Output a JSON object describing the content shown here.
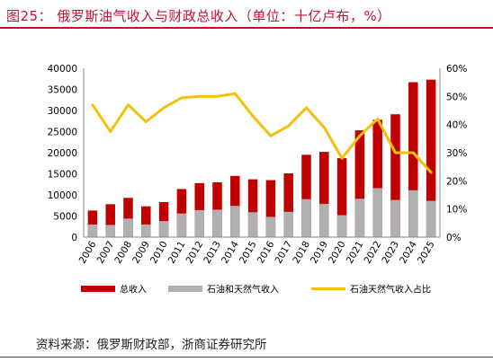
{
  "figure": {
    "title": "图25：  俄罗斯油气收入与财政总收入（单位：十亿卢布，%）",
    "source": "资料来源：俄罗斯财政部，浙商证券研究所"
  },
  "colors": {
    "total": "#c00000",
    "oilgas": "#b0b0b0",
    "share": "#f5bf0a",
    "accent": "#c8102e"
  },
  "chart_data": {
    "type": "bar",
    "categories": [
      "2006",
      "2007",
      "2008",
      "2009",
      "2010",
      "2011",
      "2012",
      "2013",
      "2014",
      "2015",
      "2016",
      "2017",
      "2018",
      "2019",
      "2020",
      "2021",
      "2022",
      "2023",
      "2024",
      "2025"
    ],
    "series": [
      {
        "name": "总收入",
        "type": "bar",
        "axis": "left",
        "values": [
          6300,
          7800,
          9300,
          7300,
          8300,
          11400,
          12800,
          13000,
          14500,
          13700,
          13500,
          15100,
          19500,
          20200,
          18700,
          25300,
          27800,
          29100,
          36700,
          37300
        ]
      },
      {
        "name": "石油和天然气收入",
        "type": "bar",
        "axis": "left",
        "values": [
          3000,
          2900,
          4400,
          3000,
          3800,
          5600,
          6400,
          6500,
          7400,
          5900,
          4800,
          6000,
          9000,
          7900,
          5200,
          9100,
          11600,
          8800,
          11100,
          8600
        ]
      },
      {
        "name": "石油天然气收入占比",
        "type": "line",
        "axis": "right",
        "values": [
          47,
          37.5,
          47,
          41,
          46,
          49.5,
          50,
          50,
          51,
          43,
          36,
          39.5,
          46,
          39,
          28,
          36,
          42,
          30,
          30,
          23
        ]
      }
    ],
    "y_left": {
      "ylim": [
        0,
        40000
      ],
      "ticks": [
        0,
        5000,
        10000,
        15000,
        20000,
        25000,
        30000,
        35000,
        40000
      ]
    },
    "y_right": {
      "ylim": [
        0,
        60
      ],
      "ticks": [
        "0%",
        "10%",
        "20%",
        "30%",
        "40%",
        "50%",
        "60%"
      ]
    },
    "legend_position": "bottom",
    "grid": false
  }
}
